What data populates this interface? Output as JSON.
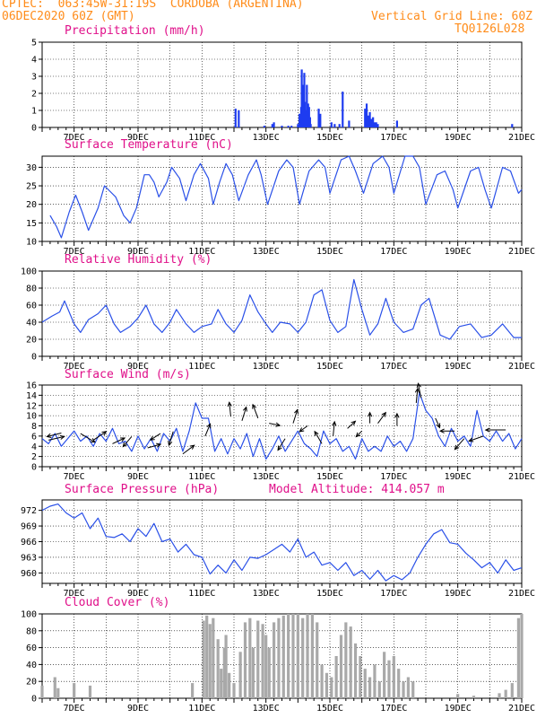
{
  "header": {
    "left_line1": "CPTEC:  063:45W-31:19S  CORDOBA (ARGENTINA)",
    "left_line2": "06DEC2020 60Z (GMT)",
    "right_line1": "Vertical Grid Line: 60Z",
    "right_line2": "TQ0126L028"
  },
  "colors": {
    "header": "#ff8c1a",
    "title": "#e0108a",
    "line": "#2a50e8",
    "bar": "#1e3cf0",
    "cloud": "#a9a9a9",
    "grid": "#000000"
  },
  "x_ticks": [
    "7DEC",
    "9DEC",
    "11DEC",
    "13DEC",
    "15DEC",
    "17DEC",
    "19DEC",
    "21DEC"
  ],
  "chart_data": [
    {
      "type": "bar",
      "title": "Precipitation (mm/h)",
      "ylim": [
        0,
        5
      ],
      "yticks": [
        "0",
        "1",
        "2",
        "3",
        "4",
        "5"
      ],
      "x": [
        12.05,
        12.15,
        12.95,
        13.2,
        13.25,
        13.5,
        13.7,
        13.8,
        14.0,
        14.05,
        14.1,
        14.12,
        14.15,
        14.18,
        14.2,
        14.22,
        14.25,
        14.28,
        14.3,
        14.32,
        14.35,
        14.38,
        14.4,
        14.65,
        14.7,
        15.05,
        15.15,
        15.3,
        15.4,
        15.6,
        16.1,
        16.15,
        16.2,
        16.25,
        16.3,
        16.35,
        16.4,
        16.45,
        16.5,
        17.1,
        20.7
      ],
      "values": [
        1.1,
        1.0,
        0.1,
        0.2,
        0.3,
        0.1,
        0.1,
        0.1,
        0.2,
        0.8,
        1.2,
        3.4,
        2.5,
        1.0,
        3.2,
        1.5,
        1.0,
        2.5,
        0.7,
        1.4,
        1.2,
        0.6,
        0.2,
        1.1,
        0.8,
        0.3,
        0.2,
        0.2,
        2.1,
        0.4,
        1.1,
        1.4,
        0.7,
        0.9,
        0.5,
        0.6,
        0.3,
        0.3,
        0.2,
        0.4,
        0.2
      ]
    },
    {
      "type": "line",
      "title": "Surface Temperature (nC)",
      "ylim": [
        10,
        33
      ],
      "yticks": [
        "10",
        "15",
        "20",
        "25",
        "30"
      ],
      "x": [
        6.25,
        6.45,
        6.6,
        6.85,
        7.05,
        7.25,
        7.45,
        7.75,
        7.95,
        8.3,
        8.55,
        8.75,
        8.95,
        9.2,
        9.35,
        9.5,
        9.65,
        9.9,
        10.05,
        10.3,
        10.5,
        10.75,
        10.95,
        11.2,
        11.35,
        11.55,
        11.75,
        11.95,
        12.15,
        12.45,
        12.7,
        12.85,
        13.05,
        13.4,
        13.65,
        13.85,
        14.05,
        14.35,
        14.65,
        14.85,
        15.0,
        15.35,
        15.6,
        15.8,
        16.05,
        16.35,
        16.65,
        16.85,
        17.0,
        17.35,
        17.6,
        17.8,
        18.0,
        18.35,
        18.6,
        18.85,
        19.0,
        19.4,
        19.65,
        19.85,
        20.05,
        20.4,
        20.65,
        20.9,
        21.0
      ],
      "values": [
        17,
        14,
        11,
        18,
        22.5,
        18,
        13,
        19,
        25,
        22,
        17,
        15,
        19,
        28,
        28,
        26,
        22,
        26,
        30,
        27,
        21,
        28,
        31,
        27,
        20,
        26,
        31,
        28,
        21,
        28,
        32,
        28,
        20,
        29,
        32,
        30,
        20,
        29,
        32,
        30,
        23,
        32,
        33,
        29,
        23,
        31,
        33,
        30,
        23,
        33,
        33,
        30,
        20,
        28,
        29,
        24,
        19,
        29,
        30,
        24,
        19,
        30,
        29,
        23,
        24
      ]
    },
    {
      "type": "line",
      "title": "Relative Humidity (%)",
      "ylim": [
        0,
        100
      ],
      "yticks": [
        "0",
        "20",
        "40",
        "60",
        "80",
        "100"
      ],
      "x": [
        6.0,
        6.3,
        6.55,
        6.7,
        7.0,
        7.2,
        7.45,
        7.75,
        8.0,
        8.25,
        8.45,
        8.75,
        9.0,
        9.25,
        9.5,
        9.75,
        10.0,
        10.2,
        10.5,
        10.75,
        11.0,
        11.3,
        11.5,
        11.75,
        12.0,
        12.25,
        12.5,
        12.75,
        13.0,
        13.2,
        13.45,
        13.75,
        14.0,
        14.25,
        14.5,
        14.75,
        15.0,
        15.25,
        15.5,
        15.75,
        16.0,
        16.25,
        16.5,
        16.75,
        17.0,
        17.3,
        17.6,
        17.85,
        18.1,
        18.45,
        18.75,
        19.05,
        19.4,
        19.75,
        20.05,
        20.4,
        20.75,
        21.0
      ],
      "values": [
        40,
        47,
        52,
        65,
        38,
        28,
        43,
        50,
        60,
        38,
        28,
        35,
        45,
        60,
        38,
        28,
        40,
        55,
        38,
        28,
        35,
        38,
        55,
        38,
        28,
        42,
        72,
        52,
        38,
        28,
        40,
        38,
        28,
        40,
        72,
        78,
        42,
        28,
        35,
        90,
        55,
        25,
        38,
        68,
        40,
        28,
        32,
        60,
        68,
        25,
        20,
        35,
        38,
        22,
        25,
        38,
        22,
        22
      ]
    },
    {
      "type": "line",
      "title": "Surface Wind (m/s)",
      "ylim": [
        0,
        16
      ],
      "yticks": [
        "0",
        "2",
        "4",
        "6",
        "8",
        "10",
        "12",
        "14",
        "16"
      ],
      "x": [
        6.0,
        6.2,
        6.4,
        6.6,
        6.8,
        7.0,
        7.2,
        7.4,
        7.6,
        7.8,
        8.0,
        8.2,
        8.4,
        8.6,
        8.8,
        9.0,
        9.2,
        9.4,
        9.6,
        9.8,
        10.0,
        10.2,
        10.4,
        10.6,
        10.8,
        11.0,
        11.2,
        11.4,
        11.6,
        11.8,
        12.0,
        12.2,
        12.4,
        12.6,
        12.8,
        13.0,
        13.2,
        13.4,
        13.6,
        13.8,
        14.0,
        14.2,
        14.4,
        14.6,
        14.8,
        15.0,
        15.2,
        15.4,
        15.6,
        15.8,
        16.0,
        16.2,
        16.4,
        16.6,
        16.8,
        17.0,
        17.2,
        17.4,
        17.6,
        17.8,
        18.0,
        18.2,
        18.4,
        18.6,
        18.8,
        19.0,
        19.2,
        19.4,
        19.6,
        19.8,
        20.0,
        20.2,
        20.4,
        20.6,
        20.8,
        21.0
      ],
      "values": [
        5.5,
        4.5,
        6.5,
        4.0,
        5.5,
        7.0,
        5.0,
        6.0,
        4.0,
        6.5,
        5.0,
        7.5,
        4.5,
        5.0,
        3.0,
        6.0,
        3.5,
        5.5,
        3.0,
        6.5,
        5.0,
        7.5,
        3.0,
        7.0,
        12.5,
        9.5,
        9.5,
        3.0,
        5.5,
        2.5,
        5.5,
        3.5,
        6.5,
        2.0,
        5.5,
        1.5,
        3.5,
        6.0,
        3.0,
        5.0,
        7.0,
        4.5,
        3.5,
        2.0,
        7.0,
        4.5,
        5.5,
        3.0,
        4.0,
        1.5,
        5.5,
        3.0,
        4.0,
        3.0,
        6.0,
        4.0,
        5.0,
        3.0,
        5.5,
        14.5,
        11.0,
        9.5,
        6.0,
        4.0,
        7.5,
        5.0,
        6.0,
        4.0,
        11.0,
        6.0,
        5.0,
        7.0,
        5.0,
        6.5,
        3.5,
        5.5
      ],
      "vectors": [
        {
          "x": 6.2,
          "y": 5.2,
          "u": 1.1,
          "v": 0.25
        },
        {
          "x": 6.6,
          "y": 6.6,
          "u": -1.0,
          "v": -0.25
        },
        {
          "x": 7.2,
          "y": 6.5,
          "u": 1.0,
          "v": -0.6
        },
        {
          "x": 7.6,
          "y": 5.2,
          "u": 0.9,
          "v": 0.6
        },
        {
          "x": 8.2,
          "y": 4.5,
          "u": 0.85,
          "v": 0.4
        },
        {
          "x": 8.8,
          "y": 5.9,
          "u": -0.6,
          "v": -0.7
        },
        {
          "x": 9.3,
          "y": 3.7,
          "u": 0.9,
          "v": 0.25
        },
        {
          "x": 9.7,
          "y": 6.5,
          "u": -0.7,
          "v": -0.45
        },
        {
          "x": 10.1,
          "y": 6.9,
          "u": -0.3,
          "v": -0.95
        },
        {
          "x": 10.4,
          "y": 2.5,
          "u": 0.8,
          "v": 0.6
        },
        {
          "x": 11.1,
          "y": 6.0,
          "u": 0.35,
          "v": 0.85
        },
        {
          "x": 11.9,
          "y": 9.8,
          "u": -0.1,
          "v": 1.0
        },
        {
          "x": 12.25,
          "y": 9.0,
          "u": 0.3,
          "v": 0.95
        },
        {
          "x": 12.75,
          "y": 9.5,
          "u": -0.35,
          "v": 0.95
        },
        {
          "x": 13.1,
          "y": 8.5,
          "u": 0.75,
          "v": -0.15
        },
        {
          "x": 13.6,
          "y": 5.5,
          "u": -0.5,
          "v": -0.8
        },
        {
          "x": 13.85,
          "y": 8.5,
          "u": 0.3,
          "v": 0.95
        },
        {
          "x": 14.3,
          "y": 8.0,
          "u": -0.55,
          "v": -0.4
        },
        {
          "x": 14.75,
          "y": 4.5,
          "u": -0.5,
          "v": 0.85
        },
        {
          "x": 15.1,
          "y": 6.0,
          "u": 0.1,
          "v": 1.0
        },
        {
          "x": 15.55,
          "y": 7.5,
          "u": 0.55,
          "v": 0.5
        },
        {
          "x": 16.0,
          "y": 7.0,
          "u": -0.4,
          "v": -0.4
        },
        {
          "x": 16.25,
          "y": 8.5,
          "u": 0.0,
          "v": 0.75
        },
        {
          "x": 16.5,
          "y": 8.5,
          "u": 0.55,
          "v": 0.75
        },
        {
          "x": 17.1,
          "y": 8.0,
          "u": 0.0,
          "v": 0.85
        },
        {
          "x": 17.7,
          "y": 12.5,
          "u": 0.1,
          "v": 1.0
        },
        {
          "x": 17.85,
          "y": 13.5,
          "u": -0.2,
          "v": 1.0
        },
        {
          "x": 18.3,
          "y": 9.5,
          "u": 0.3,
          "v": -0.65
        },
        {
          "x": 18.9,
          "y": 7.0,
          "u": -1.0,
          "v": 0.0
        },
        {
          "x": 19.2,
          "y": 5.5,
          "u": -0.65,
          "v": -0.75
        },
        {
          "x": 19.8,
          "y": 6.0,
          "u": -1.0,
          "v": -0.35
        },
        {
          "x": 20.5,
          "y": 7.2,
          "u": -1.4,
          "v": 0.0
        }
      ]
    },
    {
      "type": "line",
      "title": "Surface Pressure (hPa)",
      "annotation": "Model Altitude: 414.057 m",
      "ylim": [
        958,
        974
      ],
      "yticks": [
        "960",
        "963",
        "966",
        "969",
        "972"
      ],
      "x": [
        6.0,
        6.25,
        6.5,
        6.75,
        7.0,
        7.25,
        7.5,
        7.75,
        8.0,
        8.25,
        8.5,
        8.75,
        9.0,
        9.25,
        9.5,
        9.75,
        10.0,
        10.25,
        10.5,
        10.75,
        11.0,
        11.25,
        11.5,
        11.75,
        12.0,
        12.25,
        12.5,
        12.75,
        13.0,
        13.25,
        13.5,
        13.75,
        14.0,
        14.25,
        14.5,
        14.75,
        15.0,
        15.25,
        15.5,
        15.75,
        16.0,
        16.25,
        16.5,
        16.75,
        17.0,
        17.25,
        17.5,
        17.75,
        18.0,
        18.25,
        18.5,
        18.75,
        19.0,
        19.25,
        19.5,
        19.75,
        20.0,
        20.25,
        20.5,
        20.75,
        21.0
      ],
      "values": [
        972,
        972.8,
        973.2,
        971.5,
        970.5,
        971.5,
        968.5,
        970.5,
        967,
        966.8,
        967.5,
        966,
        968.5,
        967,
        969.5,
        966,
        966.5,
        964,
        965.5,
        963.5,
        963,
        959.8,
        961.5,
        960.0,
        962.5,
        960.5,
        963,
        962.8,
        963.5,
        964.5,
        965.5,
        964,
        966.5,
        963,
        964,
        961.5,
        962,
        960.5,
        962,
        959.5,
        960.5,
        958.8,
        960.5,
        958.5,
        959.5,
        958.7,
        960,
        963,
        965.5,
        967.5,
        968.3,
        965.8,
        965.5,
        963.8,
        962.5,
        961,
        962,
        960,
        962.5,
        960.5,
        961
      ]
    },
    {
      "type": "bar",
      "title": "Cloud Cover (%)",
      "ylim": [
        0,
        100
      ],
      "yticks": [
        "0",
        "20",
        "40",
        "60",
        "80",
        "100"
      ],
      "x": [
        6.0,
        6.4,
        6.5,
        7.0,
        7.5,
        10.7,
        11.05,
        11.15,
        11.25,
        11.35,
        11.5,
        11.6,
        11.7,
        11.75,
        11.85,
        12.0,
        12.2,
        12.35,
        12.5,
        12.6,
        12.75,
        12.9,
        13.0,
        13.1,
        13.25,
        13.4,
        13.55,
        13.7,
        13.85,
        14.0,
        14.15,
        14.3,
        14.45,
        14.6,
        14.75,
        14.9,
        15.05,
        15.2,
        15.35,
        15.5,
        15.65,
        15.8,
        15.95,
        16.1,
        16.25,
        16.4,
        16.55,
        16.7,
        16.85,
        17.0,
        17.15,
        17.3,
        17.45,
        17.6,
        19.0,
        19.5,
        20.3,
        20.5,
        20.7,
        20.9,
        21.0
      ],
      "values": [
        15,
        25,
        12,
        18,
        15,
        18,
        92,
        98,
        88,
        95,
        70,
        35,
        60,
        75,
        30,
        18,
        55,
        90,
        95,
        60,
        92,
        88,
        75,
        60,
        90,
        95,
        98,
        100,
        100,
        100,
        95,
        100,
        100,
        90,
        40,
        30,
        25,
        50,
        75,
        90,
        85,
        65,
        50,
        35,
        25,
        40,
        20,
        55,
        45,
        50,
        35,
        20,
        25,
        20,
        5,
        3,
        6,
        10,
        18,
        95,
        100
      ]
    }
  ]
}
